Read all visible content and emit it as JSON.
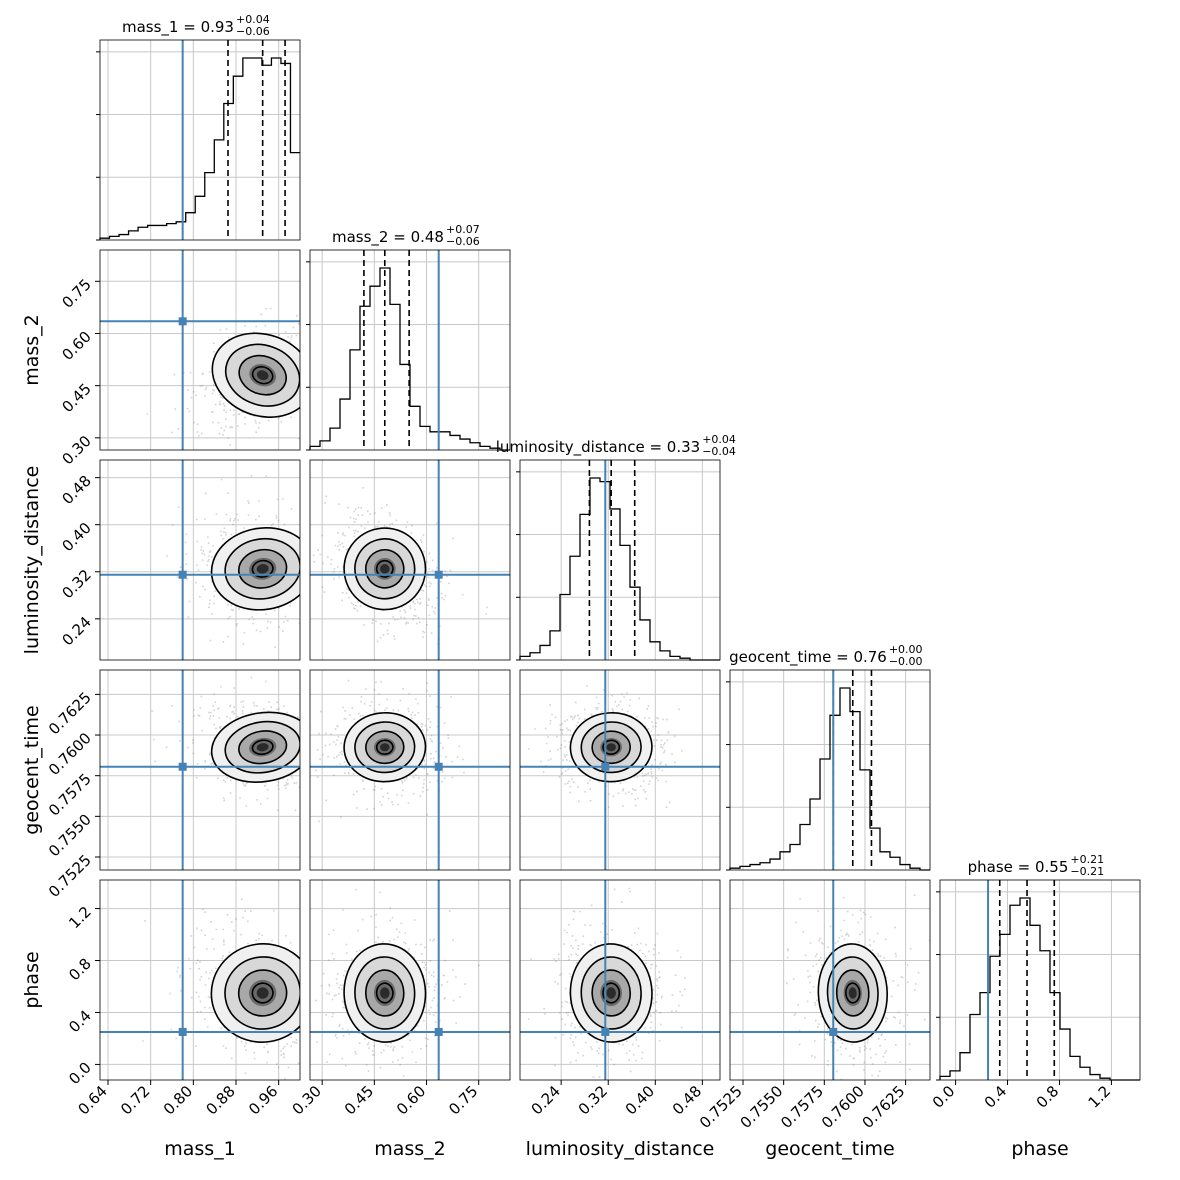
{
  "chart_data": {
    "type": "corner",
    "parameters": [
      "mass_1",
      "mass_2",
      "luminosity_distance",
      "geocent_time",
      "phase"
    ],
    "axis_labels": [
      "mass_1",
      "mass_2",
      "luminosity_distance",
      "geocent_time",
      "phase"
    ],
    "ranges": [
      [
        0.625,
        1.0
      ],
      [
        0.265,
        0.84
      ],
      [
        0.17,
        0.51
      ],
      [
        0.7517,
        0.764
      ],
      [
        -0.12,
        1.42
      ]
    ],
    "ticks": [
      [
        "0.64",
        "0.72",
        "0.80",
        "0.88",
        "0.96"
      ],
      [
        "0.30",
        "0.45",
        "0.60",
        "0.75"
      ],
      [
        "0.24",
        "0.32",
        "0.40",
        "0.48"
      ],
      [
        "0.7525",
        "0.7550",
        "0.7575",
        "0.7600",
        "0.7625"
      ],
      [
        "0.0",
        "0.4",
        "0.8",
        "1.2"
      ]
    ],
    "truths": [
      0.78,
      0.635,
      0.315,
      0.75805,
      0.25
    ],
    "truth_color": "#4682b4",
    "titles": [
      {
        "label": "mass_1",
        "median": "0.93",
        "plus": "+0.04",
        "minus": "−0.06"
      },
      {
        "label": "mass_2",
        "median": "0.48",
        "plus": "+0.07",
        "minus": "−0.06"
      },
      {
        "label": "luminosity_distance",
        "median": "0.33",
        "plus": "+0.04",
        "minus": "−0.04"
      },
      {
        "label": "geocent_time",
        "median": "0.76",
        "plus": "+0.00",
        "minus": "−0.00"
      },
      {
        "label": "phase",
        "median": "0.55",
        "plus": "+0.21",
        "minus": "−0.21"
      }
    ],
    "quantiles": [
      [
        0.865,
        0.93,
        0.972
      ],
      [
        0.42,
        0.48,
        0.55
      ],
      [
        0.288,
        0.325,
        0.365
      ],
      [
        0.75805,
        0.75925,
        0.7604
      ],
      [
        0.34,
        0.55,
        0.76
      ]
    ],
    "histograms": [
      [
        1,
        2,
        3,
        5,
        7,
        8,
        8,
        9,
        10,
        15,
        24,
        37,
        55,
        75,
        90,
        100,
        100,
        96,
        100,
        97,
        48
      ],
      [
        2,
        5,
        12,
        28,
        55,
        79,
        90,
        100,
        80,
        47,
        24,
        13,
        10,
        10,
        8,
        6,
        4,
        2,
        1,
        0
      ],
      [
        2,
        4,
        8,
        16,
        36,
        57,
        80,
        100,
        98,
        83,
        63,
        40,
        22,
        10,
        5,
        2,
        1,
        0,
        0,
        0
      ],
      [
        1,
        2,
        3,
        4,
        6,
        10,
        14,
        25,
        39,
        61,
        85,
        100,
        87,
        55,
        23,
        10,
        7,
        3,
        1,
        0
      ],
      [
        2,
        5,
        15,
        36,
        48,
        68,
        80,
        96,
        100,
        85,
        71,
        48,
        28,
        13,
        7,
        3,
        1,
        0,
        0,
        0
      ]
    ],
    "grid": true,
    "sample_color": "#808080",
    "contour_color": "#000000"
  }
}
